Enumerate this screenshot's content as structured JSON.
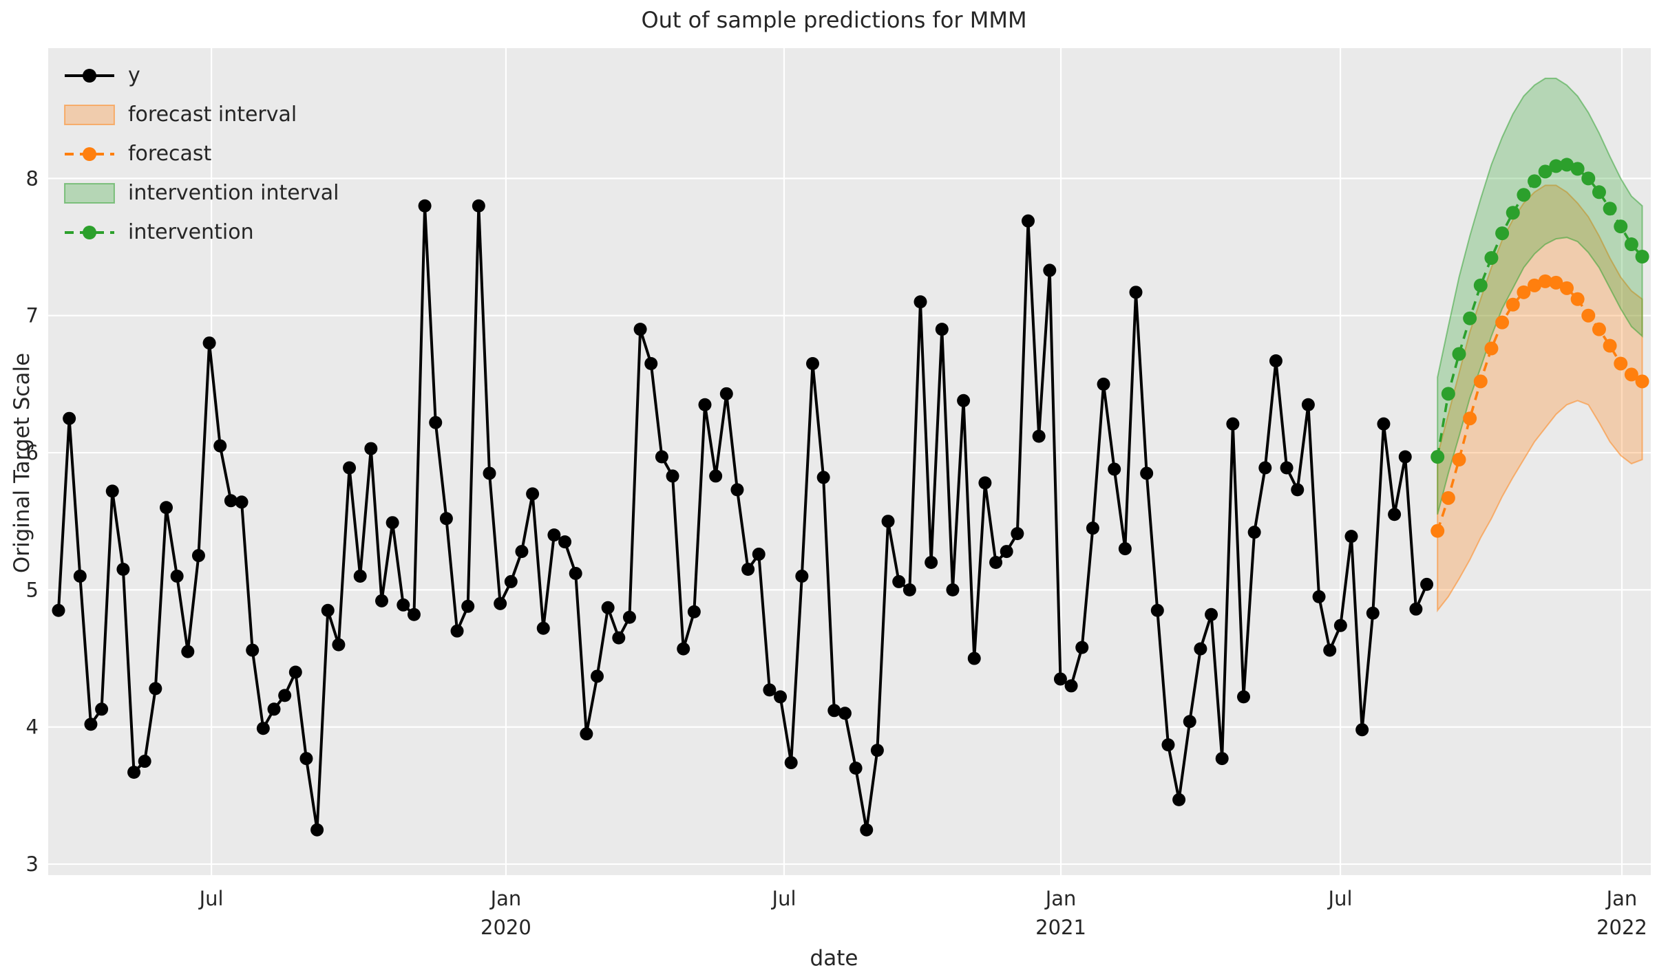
{
  "title": "Out of sample predictions for MMM",
  "legend": {
    "items": [
      {
        "label": "y",
        "swatch": "line-dot",
        "color": "#000000"
      },
      {
        "label": "forecast interval",
        "swatch": "patch",
        "color": "#ff7f0e"
      },
      {
        "label": "forecast",
        "swatch": "dashed-dot",
        "color": "#ff7f0e"
      },
      {
        "label": "intervention interval",
        "swatch": "patch",
        "color": "#2ca02c"
      },
      {
        "label": "intervention",
        "swatch": "dashed-dot",
        "color": "#2ca02c"
      }
    ]
  },
  "chart_data": {
    "type": "line",
    "title": "Out of sample predictions for MMM",
    "xlabel": "date",
    "ylabel": "Original Target Scale",
    "background_color": "#eaeaea",
    "grid": "on",
    "grid_color": "#ffffff",
    "legend_position": "upper left",
    "x_unit": "weeks",
    "ylim": [
      2.92,
      8.95
    ],
    "y_axis": {
      "ticks": [
        3,
        4,
        5,
        6,
        7,
        8
      ]
    },
    "x_axis": {
      "ticks": [
        {
          "week": 14.19,
          "line1": "Jul",
          "line2": ""
        },
        {
          "week": 41.53,
          "line1": "Jan",
          "line2": "2020"
        },
        {
          "week": 67.35,
          "line1": "Jul",
          "line2": ""
        },
        {
          "week": 93.04,
          "line1": "Jan",
          "line2": "2021"
        },
        {
          "week": 118.98,
          "line1": "Jul",
          "line2": ""
        },
        {
          "week": 145.11,
          "line1": "Jan",
          "line2": "2022"
        }
      ]
    },
    "series": [
      {
        "name": "y",
        "color": "#000000",
        "style": "solid",
        "start_week": 0,
        "values": [
          4.85,
          6.25,
          5.1,
          4.02,
          4.13,
          5.72,
          5.15,
          3.67,
          3.75,
          4.28,
          5.6,
          5.1,
          4.55,
          5.25,
          6.8,
          6.05,
          5.65,
          5.64,
          4.56,
          3.99,
          4.13,
          4.23,
          4.4,
          3.77,
          3.25,
          4.85,
          4.6,
          5.89,
          5.1,
          6.03,
          4.92,
          5.49,
          4.89,
          4.82,
          7.8,
          6.22,
          5.52,
          4.7,
          4.88,
          7.8,
          5.85,
          4.9,
          5.06,
          5.28,
          5.7,
          4.72,
          5.4,
          5.35,
          5.12,
          3.95,
          4.37,
          4.87,
          4.65,
          4.8,
          6.9,
          6.65,
          5.97,
          5.83,
          4.57,
          4.84,
          6.35,
          5.83,
          6.43,
          5.73,
          5.15,
          5.26,
          4.27,
          4.22,
          3.74,
          5.1,
          6.65,
          5.82,
          4.12,
          4.1,
          3.7,
          3.25,
          3.83,
          5.5,
          5.06,
          5.0,
          7.1,
          5.2,
          6.9,
          5.0,
          6.38,
          4.5,
          5.78,
          5.2,
          5.28,
          5.41,
          7.69,
          6.12,
          7.33,
          4.35,
          4.3,
          4.58,
          5.45,
          6.5,
          5.88,
          5.3,
          7.17,
          5.85,
          4.85,
          3.87,
          3.47,
          4.04,
          4.57,
          4.82,
          3.77,
          6.21,
          4.22,
          5.42,
          5.89,
          6.67,
          5.89,
          5.73,
          6.35,
          4.95,
          4.56,
          4.74,
          5.39,
          3.98,
          4.83,
          6.21,
          5.55,
          5.97,
          4.86,
          5.04
        ]
      },
      {
        "name": "forecast",
        "color": "#ff7f0e",
        "style": "dashed",
        "start_week": 128,
        "values": [
          5.43,
          5.67,
          5.95,
          6.25,
          6.52,
          6.76,
          6.95,
          7.08,
          7.17,
          7.22,
          7.25,
          7.24,
          7.2,
          7.12,
          7.0,
          6.9,
          6.78,
          6.65,
          6.57,
          6.52
        ],
        "band": {
          "label": "forecast interval",
          "lower": [
            4.85,
            4.95,
            5.08,
            5.22,
            5.38,
            5.52,
            5.68,
            5.82,
            5.95,
            6.08,
            6.18,
            6.28,
            6.35,
            6.38,
            6.35,
            6.22,
            6.08,
            5.98,
            5.92,
            5.95
          ],
          "upper": [
            5.98,
            6.28,
            6.58,
            6.88,
            7.12,
            7.35,
            7.55,
            7.7,
            7.82,
            7.9,
            7.95,
            7.95,
            7.9,
            7.82,
            7.72,
            7.58,
            7.42,
            7.28,
            7.18,
            7.12
          ]
        }
      },
      {
        "name": "intervention",
        "color": "#2ca02c",
        "style": "dashed",
        "start_week": 128,
        "values": [
          5.97,
          6.43,
          6.72,
          6.98,
          7.22,
          7.42,
          7.6,
          7.75,
          7.88,
          7.98,
          8.05,
          8.09,
          8.1,
          8.07,
          8.0,
          7.9,
          7.78,
          7.65,
          7.52,
          7.43
        ],
        "band": {
          "label": "intervention interval",
          "lower": [
            5.55,
            5.85,
            6.12,
            6.4,
            6.62,
            6.85,
            7.05,
            7.2,
            7.35,
            7.45,
            7.52,
            7.56,
            7.57,
            7.54,
            7.46,
            7.35,
            7.2,
            7.05,
            6.92,
            6.85
          ],
          "upper": [
            6.55,
            6.92,
            7.28,
            7.58,
            7.85,
            8.1,
            8.3,
            8.47,
            8.6,
            8.68,
            8.73,
            8.73,
            8.68,
            8.6,
            8.48,
            8.33,
            8.16,
            8.0,
            7.87,
            7.8
          ]
        }
      }
    ]
  }
}
